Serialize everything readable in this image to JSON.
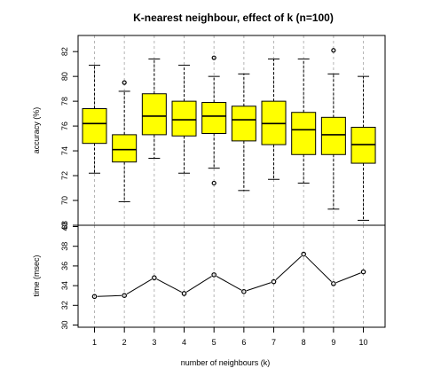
{
  "chart_data": [
    {
      "type": "box",
      "title": "K-nearest neighbour, effect of k (n=100)",
      "ylabel": "accuracy (%)",
      "ylim": [
        68,
        83
      ],
      "yticks": [
        68,
        70,
        72,
        74,
        76,
        78,
        80,
        82
      ],
      "grid": "vertical dashed lines at each k",
      "box_color": "#ffff00",
      "categories": [
        "1",
        "2",
        "3",
        "4",
        "5",
        "6",
        "7",
        "8",
        "9",
        "10"
      ],
      "boxes": [
        {
          "k": 1,
          "whisker_low": 72.2,
          "q1": 74.6,
          "median": 76.2,
          "q3": 77.4,
          "whisker_high": 80.9,
          "outliers": []
        },
        {
          "k": 2,
          "whisker_low": 69.9,
          "q1": 73.1,
          "median": 74.1,
          "q3": 75.3,
          "whisker_high": 78.8,
          "outliers": [
            79.5
          ]
        },
        {
          "k": 3,
          "whisker_low": 73.4,
          "q1": 75.3,
          "median": 76.8,
          "q3": 78.6,
          "whisker_high": 81.4,
          "outliers": []
        },
        {
          "k": 4,
          "whisker_low": 72.2,
          "q1": 75.2,
          "median": 76.5,
          "q3": 78.0,
          "whisker_high": 80.9,
          "outliers": []
        },
        {
          "k": 5,
          "whisker_low": 72.6,
          "q1": 75.4,
          "median": 76.8,
          "q3": 77.9,
          "whisker_high": 80.0,
          "outliers": [
            81.5,
            71.4
          ]
        },
        {
          "k": 6,
          "whisker_low": 70.8,
          "q1": 74.8,
          "median": 76.5,
          "q3": 77.6,
          "whisker_high": 80.2,
          "outliers": []
        },
        {
          "k": 7,
          "whisker_low": 71.7,
          "q1": 74.5,
          "median": 76.2,
          "q3": 78.0,
          "whisker_high": 81.4,
          "outliers": []
        },
        {
          "k": 8,
          "whisker_low": 71.4,
          "q1": 73.7,
          "median": 75.7,
          "q3": 77.1,
          "whisker_high": 81.4,
          "outliers": []
        },
        {
          "k": 9,
          "whisker_low": 69.3,
          "q1": 73.7,
          "median": 75.3,
          "q3": 76.7,
          "whisker_high": 80.2,
          "outliers": [
            82.1
          ]
        },
        {
          "k": 10,
          "whisker_low": 68.4,
          "q1": 73.0,
          "median": 74.5,
          "q3": 75.9,
          "whisker_high": 80.0,
          "outliers": []
        }
      ]
    },
    {
      "type": "line",
      "xlabel": "number of neighbours (k)",
      "ylabel": "time (msec)",
      "ylim": [
        30,
        40
      ],
      "yticks": [
        30,
        32,
        34,
        36,
        38,
        40
      ],
      "xticks": [
        "1",
        "2",
        "3",
        "4",
        "5",
        "6",
        "7",
        "8",
        "9",
        "10"
      ],
      "grid": "vertical dashed lines at each k",
      "markers": "open circles",
      "x": [
        1,
        2,
        3,
        4,
        5,
        6,
        7,
        8,
        9,
        10
      ],
      "y": [
        32.9,
        33.0,
        34.8,
        33.2,
        35.1,
        33.4,
        34.4,
        37.2,
        34.2,
        35.4
      ]
    }
  ]
}
